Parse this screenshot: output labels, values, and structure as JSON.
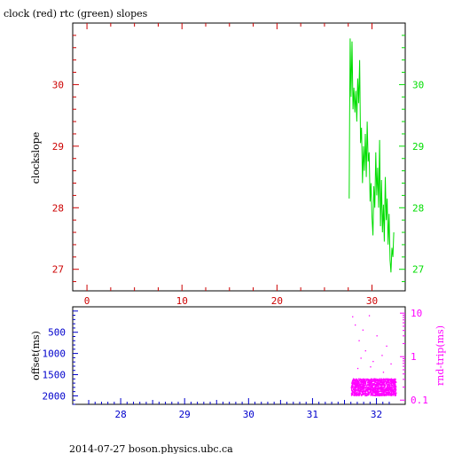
{
  "title": "clock (red) rtc (green) slopes",
  "footer": "2014-07-27 boson.physics.ubc.ca",
  "colors": {
    "red": "#cc0000",
    "green": "#00dd00",
    "blue": "#0000cc",
    "magenta": "#ff00ff",
    "axis": "#000000"
  },
  "chart_data": [
    {
      "type": "line",
      "ylabel": "clockslope",
      "xlim": [
        -1.5,
        33.5
      ],
      "ylim": [
        26.65,
        31.0
      ],
      "x_ticks": [
        0,
        10,
        20,
        30
      ],
      "y_ticks": [
        27,
        28,
        29,
        30
      ],
      "series": [
        {
          "color": "#00dd00",
          "points": [
            [
              27.6,
              28.15
            ],
            [
              27.65,
              29.5
            ],
            [
              27.7,
              30.75
            ],
            [
              27.8,
              29.8
            ],
            [
              27.9,
              30.7
            ],
            [
              28.0,
              29.6
            ],
            [
              28.1,
              29.95
            ],
            [
              28.2,
              29.55
            ],
            [
              28.3,
              29.9
            ],
            [
              28.4,
              29.4
            ],
            [
              28.5,
              30.1
            ],
            [
              28.6,
              29.7
            ],
            [
              28.7,
              30.4
            ],
            [
              28.8,
              29.05
            ],
            [
              28.9,
              29.3
            ],
            [
              29.0,
              28.4
            ],
            [
              29.1,
              29.0
            ],
            [
              29.2,
              28.6
            ],
            [
              29.3,
              29.2
            ],
            [
              29.4,
              28.5
            ],
            [
              29.5,
              29.4
            ],
            [
              29.6,
              28.75
            ],
            [
              29.7,
              28.9
            ],
            [
              29.8,
              28.1
            ],
            [
              29.9,
              28.4
            ],
            [
              30.0,
              27.85
            ],
            [
              30.1,
              27.55
            ],
            [
              30.2,
              28.35
            ],
            [
              30.3,
              28.0
            ],
            [
              30.4,
              28.9
            ],
            [
              30.5,
              28.2
            ],
            [
              30.6,
              28.65
            ],
            [
              30.7,
              28.0
            ],
            [
              30.8,
              29.1
            ],
            [
              30.9,
              27.7
            ],
            [
              31.0,
              28.45
            ],
            [
              31.1,
              27.6
            ],
            [
              31.2,
              28.05
            ],
            [
              31.3,
              27.45
            ],
            [
              31.4,
              28.5
            ],
            [
              31.5,
              27.8
            ],
            [
              31.6,
              28.15
            ],
            [
              31.7,
              27.4
            ],
            [
              31.8,
              27.9
            ],
            [
              31.9,
              27.15
            ],
            [
              32.0,
              26.95
            ],
            [
              32.1,
              27.35
            ],
            [
              32.2,
              27.2
            ],
            [
              32.3,
              27.6
            ]
          ]
        }
      ]
    },
    {
      "type": "scatter",
      "ylabel": "offset(ms)",
      "y2label": "rnd-trip(ms)",
      "xlim": [
        27.25,
        32.45
      ],
      "ylim": [
        2200,
        -100
      ],
      "x_ticks": [
        28,
        29,
        30,
        31,
        32
      ],
      "y_ticks": [
        500,
        1000,
        1500,
        2000
      ],
      "y2lim": [
        0.08,
        14
      ],
      "y2_scale": "log",
      "y2_ticks": [
        0.1,
        1,
        10
      ],
      "series": [
        {
          "color": "#ff00ff",
          "x_range": [
            31.6,
            32.3
          ],
          "y_band": [
            0.13,
            0.32
          ],
          "outliers": [
            [
              31.62,
              8.5
            ],
            [
              31.66,
              5.5
            ],
            [
              31.72,
              2.4
            ],
            [
              31.78,
              4.2
            ],
            [
              31.82,
              1.4
            ],
            [
              31.88,
              9.0
            ],
            [
              31.94,
              0.8
            ],
            [
              32.0,
              3.1
            ],
            [
              32.08,
              1.1
            ],
            [
              32.15,
              1.8
            ],
            [
              32.22,
              0.7
            ],
            [
              31.7,
              0.55
            ],
            [
              31.9,
              0.6
            ],
            [
              32.1,
              0.45
            ],
            [
              31.75,
              0.95
            ]
          ]
        }
      ]
    }
  ]
}
